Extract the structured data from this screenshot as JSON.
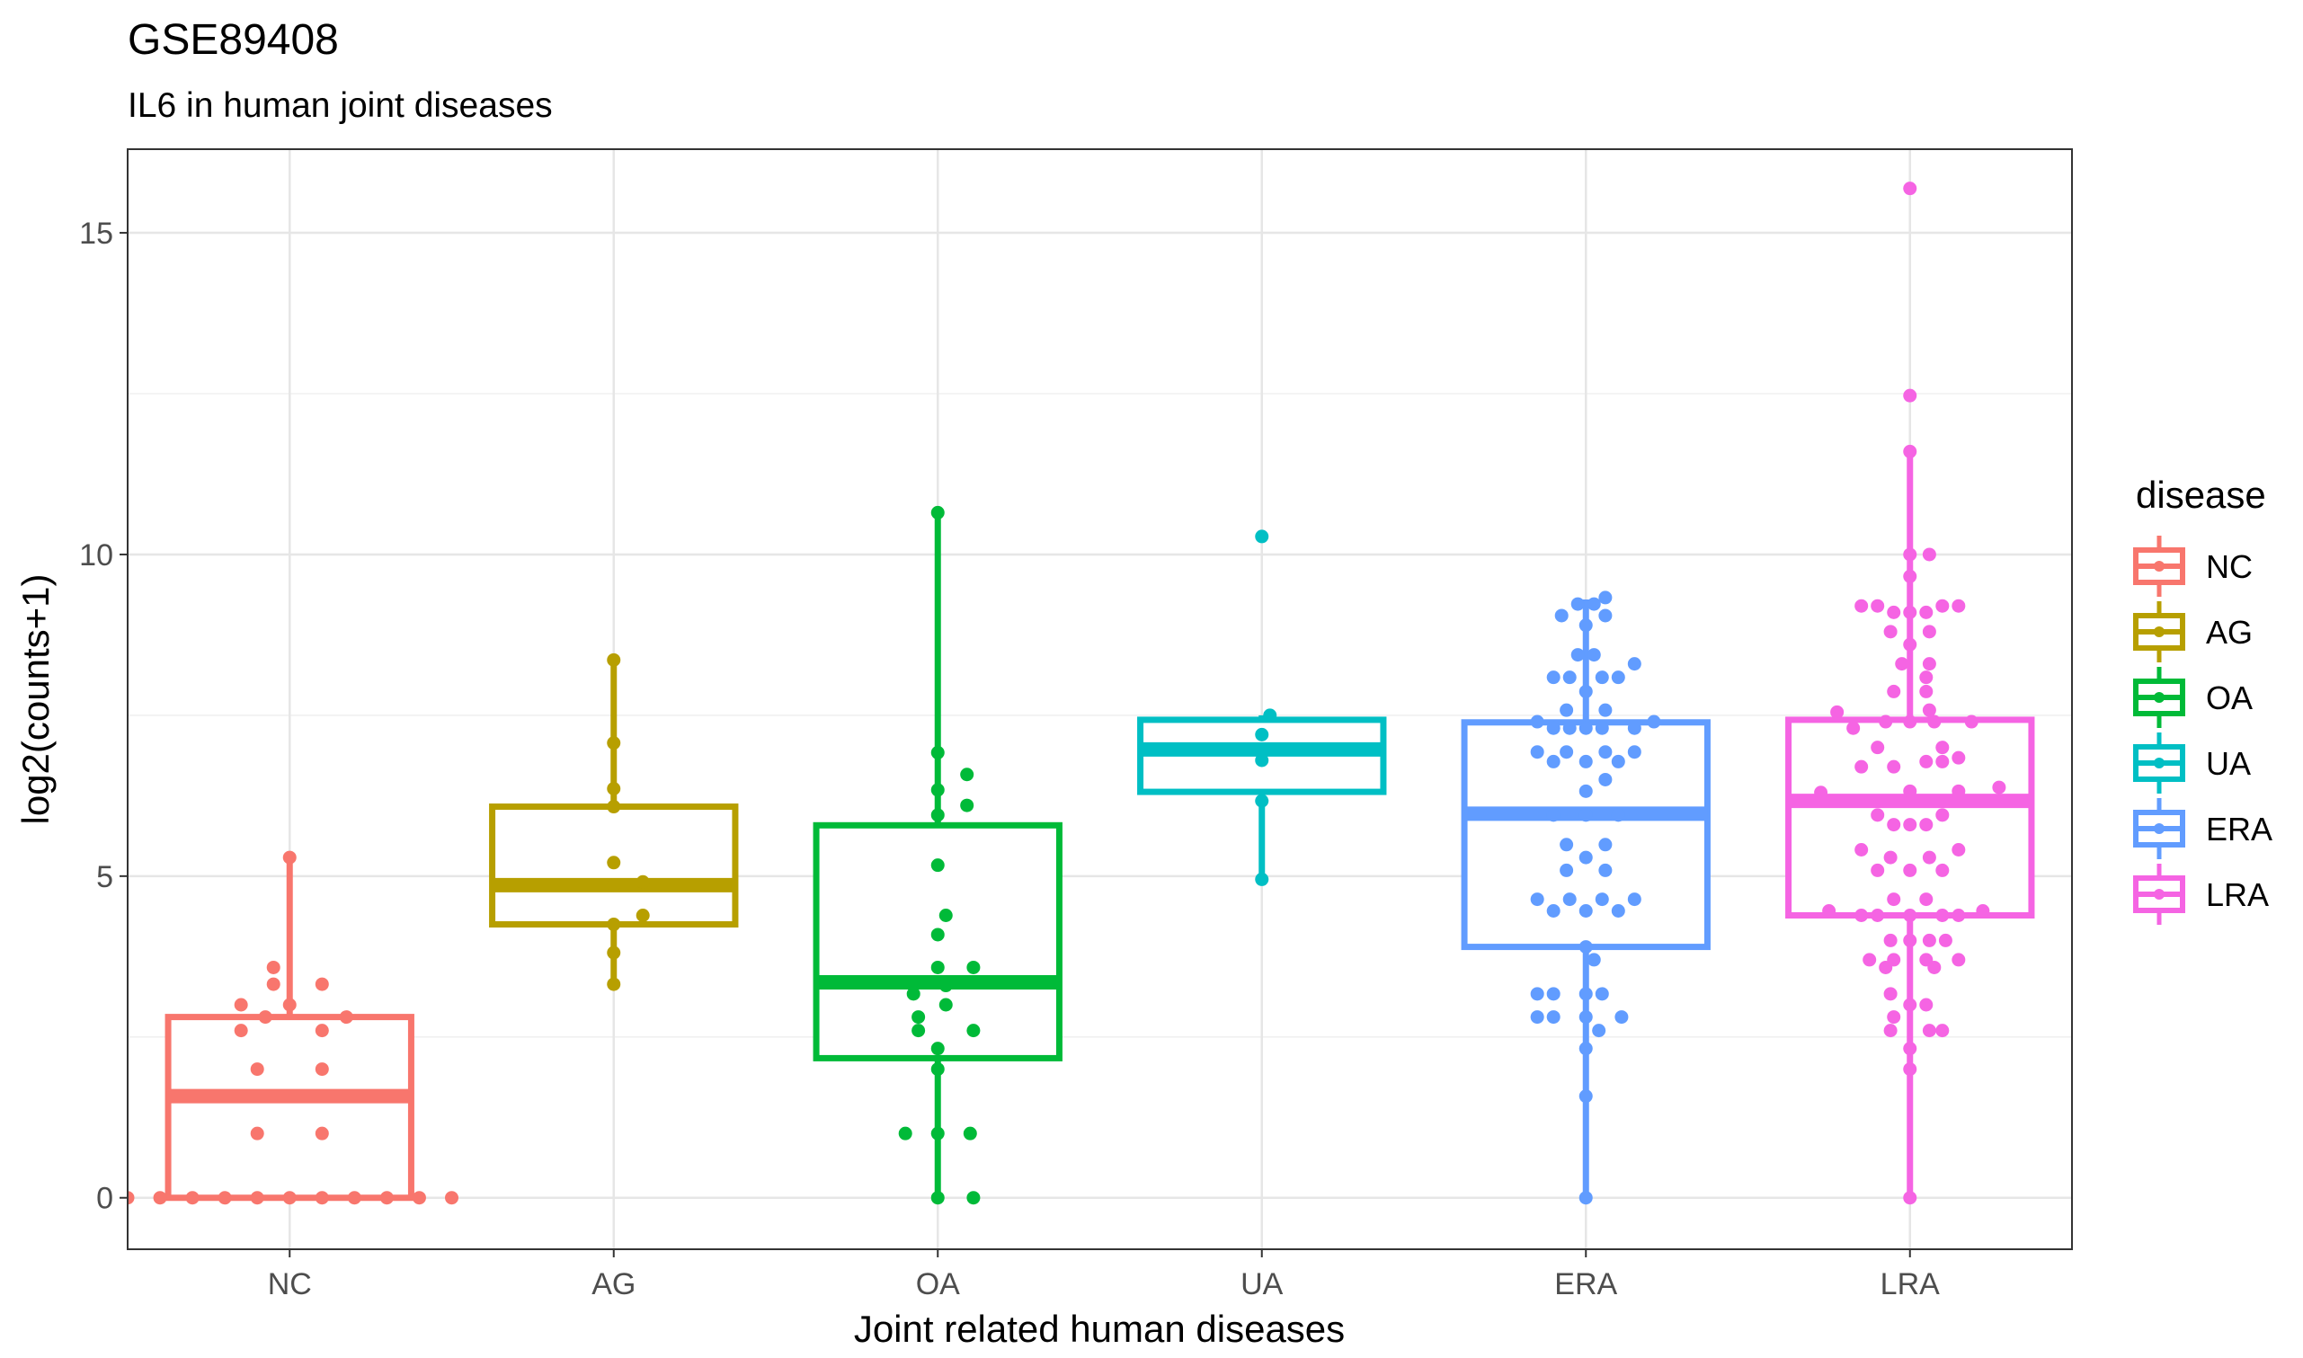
{
  "chart_data": {
    "type": "box",
    "title": "GSE89408",
    "subtitle": "IL6 in human joint diseases",
    "xlabel": "Joint related human diseases",
    "ylabel": "log2(counts+1)",
    "ylim": [
      -0.8,
      16.3
    ],
    "yticks": [
      0,
      5,
      10,
      15
    ],
    "grid": true,
    "legend": {
      "title": "disease",
      "position": "right"
    },
    "categories": [
      "NC",
      "AG",
      "OA",
      "UA",
      "ERA",
      "LRA"
    ],
    "colors": {
      "NC": "#F8766D",
      "AG": "#B79F00",
      "OA": "#00BA38",
      "UA": "#00BFC4",
      "ERA": "#619CFF",
      "LRA": "#F564E3"
    },
    "series": [
      {
        "name": "NC",
        "box": {
          "lower_whisker": 0,
          "q1": 0,
          "median": 1.58,
          "q3": 2.81,
          "upper_whisker": 5.29
        },
        "points": [
          [
            -1.2,
            0
          ],
          [
            -1.0,
            0
          ],
          [
            -0.8,
            0
          ],
          [
            -0.6,
            0
          ],
          [
            -0.4,
            0
          ],
          [
            -0.2,
            0
          ],
          [
            0,
            0
          ],
          [
            0.2,
            0
          ],
          [
            0.4,
            0
          ],
          [
            0.6,
            0
          ],
          [
            0.8,
            0
          ],
          [
            1.0,
            0
          ],
          [
            -0.2,
            1.0
          ],
          [
            0.2,
            1.0
          ],
          [
            -0.2,
            2.0
          ],
          [
            0.2,
            2.0
          ],
          [
            -0.3,
            2.6
          ],
          [
            0.2,
            2.6
          ],
          [
            -0.15,
            2.81
          ],
          [
            0.35,
            2.81
          ],
          [
            -0.3,
            3.0
          ],
          [
            0.0,
            3.0
          ],
          [
            -0.1,
            3.32
          ],
          [
            0.2,
            3.32
          ],
          [
            -0.1,
            3.58
          ],
          [
            0,
            5.29
          ]
        ]
      },
      {
        "name": "AG",
        "box": {
          "lower_whisker": 3.32,
          "q1": 4.25,
          "median": 4.86,
          "q3": 6.08,
          "upper_whisker": 8.36
        },
        "points": [
          [
            0,
            3.32
          ],
          [
            0,
            3.81
          ],
          [
            0,
            4.25
          ],
          [
            0.18,
            4.39
          ],
          [
            0,
            4.86
          ],
          [
            0.18,
            4.91
          ],
          [
            0,
            5.21
          ],
          [
            0,
            6.08
          ],
          [
            0,
            6.36
          ],
          [
            0,
            7.07
          ],
          [
            0,
            8.36
          ]
        ]
      },
      {
        "name": "OA",
        "box": {
          "lower_whisker": 0,
          "q1": 2.17,
          "median": 3.35,
          "q3": 5.79,
          "upper_whisker": 10.65
        },
        "points": [
          [
            0,
            0
          ],
          [
            0.22,
            0
          ],
          [
            -0.2,
            1.0
          ],
          [
            0,
            1.0
          ],
          [
            0.2,
            1.0
          ],
          [
            0,
            2.0
          ],
          [
            0,
            2.32
          ],
          [
            -0.12,
            2.6
          ],
          [
            0.22,
            2.6
          ],
          [
            -0.12,
            2.81
          ],
          [
            0.05,
            3.0
          ],
          [
            -0.15,
            3.17
          ],
          [
            0.05,
            3.3
          ],
          [
            -0.15,
            3.32
          ],
          [
            0.22,
            3.58
          ],
          [
            0,
            3.58
          ],
          [
            0,
            4.09
          ],
          [
            0.05,
            4.39
          ],
          [
            0,
            5.17
          ],
          [
            0,
            5.95
          ],
          [
            0.18,
            6.1
          ],
          [
            0,
            6.34
          ],
          [
            0.18,
            6.58
          ],
          [
            0,
            6.92
          ],
          [
            0,
            10.65
          ]
        ]
      },
      {
        "name": "UA",
        "box": {
          "lower_whisker": 4.95,
          "q1": 6.31,
          "median": 6.97,
          "q3": 7.43,
          "upper_whisker": 7.5
        },
        "points": [
          [
            0,
            4.95
          ],
          [
            0,
            6.17
          ],
          [
            0,
            6.8
          ],
          [
            0,
            7.2
          ],
          [
            0.05,
            7.5
          ],
          [
            0,
            10.28
          ]
        ]
      },
      {
        "name": "ERA",
        "box": {
          "lower_whisker": 0,
          "q1": 3.9,
          "median": 5.97,
          "q3": 7.39,
          "upper_whisker": 9.3
        },
        "points": [
          [
            0,
            0
          ],
          [
            0,
            1.58
          ],
          [
            0,
            2.32
          ],
          [
            -0.3,
            2.81
          ],
          [
            -0.2,
            2.81
          ],
          [
            0,
            2.81
          ],
          [
            0.22,
            2.81
          ],
          [
            0.08,
            2.6
          ],
          [
            -0.3,
            3.17
          ],
          [
            -0.2,
            3.17
          ],
          [
            0,
            3.17
          ],
          [
            0.1,
            3.17
          ],
          [
            0.05,
            3.7
          ],
          [
            0,
            3.9
          ],
          [
            -0.3,
            4.64
          ],
          [
            -0.1,
            4.64
          ],
          [
            0.1,
            4.64
          ],
          [
            0.3,
            4.64
          ],
          [
            -0.2,
            4.46
          ],
          [
            0,
            4.46
          ],
          [
            0.2,
            4.46
          ],
          [
            -0.12,
            5.09
          ],
          [
            0.12,
            5.09
          ],
          [
            -0.12,
            5.49
          ],
          [
            0.12,
            5.49
          ],
          [
            0,
            5.29
          ],
          [
            -0.2,
            5.95
          ],
          [
            0,
            5.95
          ],
          [
            0.2,
            5.95
          ],
          [
            0,
            6.32
          ],
          [
            0.12,
            6.5
          ],
          [
            -0.2,
            6.78
          ],
          [
            0,
            6.78
          ],
          [
            0.2,
            6.78
          ],
          [
            -0.3,
            6.93
          ],
          [
            -0.12,
            6.93
          ],
          [
            0.12,
            6.93
          ],
          [
            0.3,
            6.93
          ],
          [
            -0.3,
            7.4
          ],
          [
            -0.2,
            7.3
          ],
          [
            -0.1,
            7.3
          ],
          [
            0,
            7.3
          ],
          [
            0.1,
            7.3
          ],
          [
            0.3,
            7.3
          ],
          [
            0.42,
            7.4
          ],
          [
            -0.12,
            7.58
          ],
          [
            0.12,
            7.58
          ],
          [
            -0.2,
            8.09
          ],
          [
            -0.1,
            8.09
          ],
          [
            0.1,
            8.09
          ],
          [
            0.2,
            8.09
          ],
          [
            0,
            7.87
          ],
          [
            0.3,
            8.3
          ],
          [
            -0.05,
            8.44
          ],
          [
            0.05,
            8.44
          ],
          [
            -0.15,
            9.05
          ],
          [
            0.12,
            9.05
          ],
          [
            0,
            8.9
          ],
          [
            -0.05,
            9.23
          ],
          [
            0.05,
            9.23
          ],
          [
            0.12,
            9.33
          ]
        ]
      },
      {
        "name": "LRA",
        "box": {
          "lower_whisker": 0,
          "q1": 4.39,
          "median": 6.17,
          "q3": 7.43,
          "upper_whisker": 11.6
        },
        "points": [
          [
            0,
            0
          ],
          [
            0,
            2.0
          ],
          [
            0,
            2.32
          ],
          [
            -0.12,
            2.6
          ],
          [
            0.12,
            2.6
          ],
          [
            0.2,
            2.6
          ],
          [
            -0.1,
            2.81
          ],
          [
            0.1,
            3.0
          ],
          [
            -0.12,
            3.17
          ],
          [
            0,
            3.0
          ],
          [
            -0.25,
            3.7
          ],
          [
            -0.1,
            3.7
          ],
          [
            0.1,
            3.7
          ],
          [
            0.3,
            3.7
          ],
          [
            -0.15,
            3.58
          ],
          [
            0.15,
            3.58
          ],
          [
            -0.12,
            4.0
          ],
          [
            0,
            4.0
          ],
          [
            0.12,
            4.0
          ],
          [
            0.22,
            4.0
          ],
          [
            -0.5,
            4.46
          ],
          [
            -0.3,
            4.39
          ],
          [
            -0.2,
            4.39
          ],
          [
            0,
            4.39
          ],
          [
            0.2,
            4.39
          ],
          [
            0.3,
            4.39
          ],
          [
            0.45,
            4.46
          ],
          [
            -0.1,
            4.64
          ],
          [
            0.1,
            4.64
          ],
          [
            -0.2,
            5.09
          ],
          [
            0,
            5.09
          ],
          [
            0.2,
            5.09
          ],
          [
            -0.12,
            5.29
          ],
          [
            0.12,
            5.29
          ],
          [
            -0.3,
            5.41
          ],
          [
            0.3,
            5.41
          ],
          [
            -0.2,
            5.95
          ],
          [
            -0.1,
            5.8
          ],
          [
            0,
            5.8
          ],
          [
            0.1,
            5.8
          ],
          [
            0.2,
            5.95
          ],
          [
            0,
            6.32
          ],
          [
            0.3,
            6.32
          ],
          [
            -0.55,
            6.3
          ],
          [
            0.55,
            6.38
          ],
          [
            -0.3,
            6.7
          ],
          [
            -0.1,
            6.7
          ],
          [
            0.1,
            6.78
          ],
          [
            0.2,
            6.78
          ],
          [
            0.3,
            6.84
          ],
          [
            -0.2,
            7.0
          ],
          [
            0.2,
            7.0
          ],
          [
            -0.35,
            7.3
          ],
          [
            -0.15,
            7.4
          ],
          [
            0,
            7.4
          ],
          [
            0.15,
            7.4
          ],
          [
            0.38,
            7.4
          ],
          [
            -0.45,
            7.55
          ],
          [
            0.12,
            7.58
          ],
          [
            -0.1,
            7.87
          ],
          [
            0.1,
            7.87
          ],
          [
            0.1,
            8.09
          ],
          [
            -0.05,
            8.3
          ],
          [
            0.12,
            8.3
          ],
          [
            0,
            8.6
          ],
          [
            -0.12,
            8.8
          ],
          [
            0.12,
            8.8
          ],
          [
            -0.3,
            9.2
          ],
          [
            -0.2,
            9.2
          ],
          [
            -0.1,
            9.1
          ],
          [
            0,
            9.1
          ],
          [
            0.1,
            9.1
          ],
          [
            0.2,
            9.2
          ],
          [
            0.3,
            9.2
          ],
          [
            0,
            9.66
          ],
          [
            0.12,
            10.0
          ],
          [
            0,
            10.0
          ],
          [
            0,
            11.6
          ],
          [
            0,
            12.47
          ],
          [
            0,
            15.69
          ]
        ]
      }
    ]
  }
}
